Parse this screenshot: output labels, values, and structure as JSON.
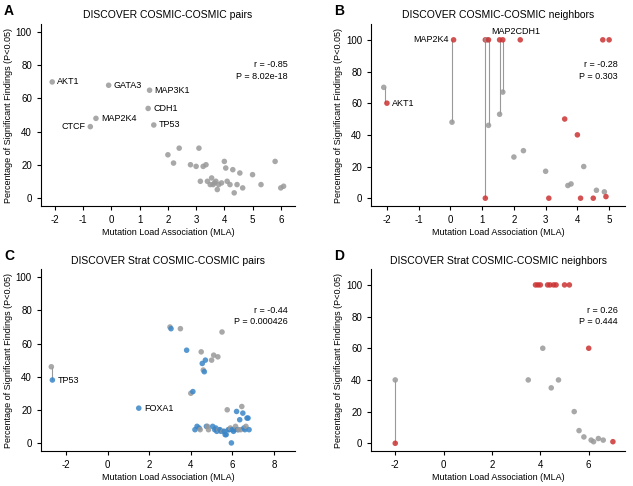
{
  "chart_data": [
    {
      "type": "scatter",
      "panel_label": "A",
      "title": "DISCOVER COSMIC-COSMIC pairs",
      "x_label": "Mutation Load Association (MLA)",
      "y_label": "Percentage of Significant Findings (P<0.05)",
      "annotation": "r = -0.85\nP = 8.02e-18",
      "xlim": [
        -2.5,
        6.5
      ],
      "ylim": [
        -5,
        105
      ],
      "xticks": [
        -2,
        -1,
        0,
        1,
        2,
        3,
        4,
        5,
        6
      ],
      "yticks": [
        0,
        20,
        40,
        60,
        80,
        100
      ],
      "series": [
        {
          "type": "scatter",
          "x": [
            -2.1,
            -0.1,
            1.35,
            -0.55,
            -0.75,
            1.3,
            1.5,
            2.0,
            2.2,
            2.4,
            2.8,
            3.0,
            3.1,
            3.15,
            3.25,
            3.35,
            3.4,
            3.5,
            3.55,
            3.6,
            3.65,
            3.7,
            3.75,
            3.8,
            3.9,
            4.0,
            4.05,
            4.1,
            4.2,
            4.3,
            4.35,
            4.45,
            4.55,
            4.65,
            5.0,
            5.3,
            5.8,
            6.0,
            6.1
          ],
          "values": [
            70,
            68,
            65,
            48,
            43,
            54,
            44,
            26,
            21,
            30,
            20,
            19,
            30,
            10,
            19,
            20,
            10,
            8,
            12,
            8,
            9,
            10,
            5,
            8,
            9,
            22,
            18,
            10,
            8,
            17,
            3,
            8,
            15,
            6,
            14,
            8,
            22,
            6,
            7
          ],
          "colors": [
            "#999999",
            "#999999",
            "#999999",
            "#999999",
            "#999999",
            "#999999",
            "#999999",
            "#999999",
            "#999999",
            "#999999",
            "#999999",
            "#999999",
            "#999999",
            "#999999",
            "#999999",
            "#999999",
            "#999999",
            "#999999",
            "#999999",
            "#999999",
            "#999999",
            "#999999",
            "#999999",
            "#999999",
            "#999999",
            "#999999",
            "#999999",
            "#999999",
            "#999999",
            "#999999",
            "#999999",
            "#999999",
            "#999999",
            "#999999",
            "#999999",
            "#999999",
            "#999999",
            "#999999",
            "#999999"
          ]
        }
      ],
      "point_labels": [
        {
          "x": -2.1,
          "y": 70,
          "label": "AKT1"
        },
        {
          "x": -0.1,
          "y": 68,
          "label": "GATA3"
        },
        {
          "x": 1.35,
          "y": 65,
          "label": "MAP3K1"
        },
        {
          "x": -0.55,
          "y": 48,
          "label": "MAP2K4"
        },
        {
          "x": -0.75,
          "y": 43,
          "label": "CTCF"
        },
        {
          "x": 1.3,
          "y": 54,
          "label": "CDH1"
        },
        {
          "x": 1.5,
          "y": 44,
          "label": "TP53"
        }
      ]
    },
    {
      "type": "scatter",
      "panel_label": "B",
      "title": "DISCOVER COSMIC-COSMIC neighbors",
      "x_label": "Mutation Load Association (MLA)",
      "y_label": "Percentage of Significant Findings (P<0.05)",
      "annotation": "r = -0.28\nP = 0.303",
      "xlim": [
        -2.5,
        5.5
      ],
      "ylim": [
        -5,
        110
      ],
      "xticks": [
        -2,
        -1,
        0,
        1,
        2,
        3,
        4,
        5
      ],
      "yticks": [
        0,
        20,
        40,
        60,
        80,
        100
      ],
      "series": [
        {
          "type": "segment",
          "color": "#999999",
          "x": [
            -2.05,
            0.05,
            1.1,
            1.2,
            1.55,
            1.65
          ],
          "y1": [
            60,
            48,
            0,
            46,
            53,
            67
          ],
          "y2": [
            70,
            100,
            100,
            100,
            100,
            100
          ]
        },
        {
          "type": "scatter",
          "x": [
            -2.1,
            -2.0,
            0.05,
            0.1,
            1.1,
            1.15,
            1.2,
            1.2,
            1.55,
            1.55,
            1.65,
            1.65,
            1.1,
            2.0,
            2.2,
            2.3,
            3.0,
            3.1,
            3.6,
            3.7,
            3.8,
            4.0,
            4.1,
            4.2,
            4.5,
            4.6,
            4.8,
            4.85,
            4.9,
            5.0
          ],
          "values": [
            70,
            60,
            48,
            100,
            100,
            100,
            46,
            100,
            53,
            100,
            67,
            100,
            0,
            26,
            100,
            30,
            17,
            0,
            50,
            8,
            9,
            40,
            0,
            20,
            0,
            5,
            100,
            4,
            1,
            100
          ],
          "colors": [
            "#999999",
            "#cc3333",
            "#999999",
            "#cc3333",
            "#cc3333",
            "#999999",
            "#999999",
            "#cc3333",
            "#999999",
            "#cc3333",
            "#999999",
            "#cc3333",
            "#cc3333",
            "#999999",
            "#cc3333",
            "#999999",
            "#999999",
            "#cc3333",
            "#cc3333",
            "#999999",
            "#999999",
            "#cc3333",
            "#cc3333",
            "#999999",
            "#cc3333",
            "#999999",
            "#cc3333",
            "#999999",
            "#cc3333",
            "#cc3333"
          ]
        }
      ],
      "point_labels": [
        {
          "x": -2.0,
          "y": 60,
          "label": "AKT1"
        },
        {
          "x": 0.1,
          "y": 100,
          "label": "MAP2K4"
        },
        {
          "x": 1.15,
          "y": 100,
          "label": "MAP2CDH1"
        }
      ]
    },
    {
      "type": "scatter",
      "panel_label": "C",
      "title": "DISCOVER Strat COSMIC-COSMIC pairs",
      "x_label": "Mutation Load Association (MLA)",
      "y_label": "Percentage of Significant Findings (P<0.05)",
      "annotation": "r = -0.44\nP = 0.000426",
      "xlim": [
        -3.2,
        9.0
      ],
      "ylim": [
        -5,
        105
      ],
      "xticks": [
        -2,
        0,
        2,
        4,
        6,
        8
      ],
      "yticks": [
        0,
        20,
        40,
        60,
        80,
        100
      ],
      "series": [
        {
          "type": "segment",
          "color": "#999999",
          "x": [
            -2.65
          ],
          "y1": [
            38
          ],
          "y2": [
            46
          ]
        },
        {
          "type": "scatter",
          "x": [
            -2.7,
            -2.65,
            1.5,
            3.0,
            3.05,
            3.5,
            3.8,
            4.0,
            4.1,
            4.2,
            4.3,
            4.4,
            4.45,
            4.5,
            4.55,
            4.6,
            4.65,
            4.7,
            4.75,
            4.8,
            4.85,
            5.0,
            5.05,
            5.1,
            5.15,
            5.2,
            5.25,
            5.3,
            5.35,
            5.4,
            5.45,
            5.5,
            5.55,
            5.6,
            5.65,
            5.7,
            5.75,
            5.8,
            5.85,
            5.9,
            5.95,
            6.0,
            6.05,
            6.1,
            6.15,
            6.2,
            6.25,
            6.3,
            6.35,
            6.4,
            6.45,
            6.5,
            6.55,
            6.6,
            6.65,
            6.7,
            6.75,
            6.8
          ],
          "values": [
            46,
            38,
            21,
            70,
            69,
            69,
            56,
            30,
            31,
            8,
            10,
            9,
            8,
            55,
            48,
            44,
            43,
            50,
            10,
            10,
            8,
            50,
            10,
            53,
            8,
            9,
            7,
            52,
            8,
            8,
            7,
            67,
            7,
            7,
            5,
            5,
            20,
            8,
            8,
            9,
            0,
            8,
            7,
            8,
            10,
            19,
            8,
            8,
            14,
            8,
            22,
            18,
            9,
            8,
            10,
            15,
            15,
            8
          ],
          "colors": [
            "#999999",
            "#3a86c8",
            "#3a86c8",
            "#999999",
            "#3a86c8",
            "#999999",
            "#3a86c8",
            "#999999",
            "#3a86c8",
            "#3a86c8",
            "#3a86c8",
            "#3a86c8",
            "#999999",
            "#999999",
            "#3a86c8",
            "#999999",
            "#3a86c8",
            "#3a86c8",
            "#3a86c8",
            "#999999",
            "#999999",
            "#999999",
            "#3a86c8",
            "#999999",
            "#3a86c8",
            "#3a86c8",
            "#3a86c8",
            "#999999",
            "#999999",
            "#3a86c8",
            "#3a86c8",
            "#999999",
            "#999999",
            "#3a86c8",
            "#3a86c8",
            "#3a86c8",
            "#999999",
            "#3a86c8",
            "#3a86c8",
            "#999999",
            "#3a86c8",
            "#3a86c8",
            "#3a86c8",
            "#3a86c8",
            "#999999",
            "#3a86c8",
            "#3a86c8",
            "#999999",
            "#3a86c8",
            "#999999",
            "#999999",
            "#3a86c8",
            "#3a86c8",
            "#3a86c8",
            "#999999",
            "#3a86c8",
            "#3a86c8",
            "#3a86c8"
          ]
        }
      ],
      "point_labels": [
        {
          "x": -2.65,
          "y": 38,
          "label": "TP53"
        },
        {
          "x": 1.5,
          "y": 21,
          "label": "FOXA1"
        }
      ]
    },
    {
      "type": "scatter",
      "panel_label": "D",
      "title": "DISCOVER Strat COSMIC-COSMIC neighbors",
      "x_label": "Mutation Load Association (MLA)",
      "y_label": "Percentage of Significant Findings (P<0.05)",
      "annotation": "r = 0.26\nP = 0.444",
      "xlim": [
        -3.0,
        7.5
      ],
      "ylim": [
        -5,
        110
      ],
      "xticks": [
        -2,
        0,
        2,
        4,
        6
      ],
      "yticks": [
        0,
        20,
        40,
        60,
        80,
        100
      ],
      "series": [
        {
          "type": "segment",
          "color": "#999999",
          "x": [
            -2.0
          ],
          "y1": [
            0
          ],
          "y2": [
            40
          ]
        },
        {
          "type": "scatter",
          "x": [
            -2.0,
            -2.0,
            3.5,
            3.8,
            3.9,
            4.0,
            4.1,
            4.3,
            4.4,
            4.45,
            4.55,
            4.65,
            4.75,
            5.0,
            5.2,
            5.4,
            5.6,
            5.8,
            6.0,
            6.1,
            6.2,
            6.4,
            6.6,
            7.0
          ],
          "values": [
            40,
            0,
            40,
            100,
            100,
            100,
            60,
            100,
            100,
            35,
            100,
            100,
            40,
            100,
            100,
            20,
            8,
            4,
            60,
            2,
            1,
            3,
            2,
            1
          ],
          "colors": [
            "#999999",
            "#cc3333",
            "#999999",
            "#cc3333",
            "#cc3333",
            "#cc3333",
            "#999999",
            "#cc3333",
            "#cc3333",
            "#999999",
            "#cc3333",
            "#cc3333",
            "#999999",
            "#cc3333",
            "#cc3333",
            "#999999",
            "#999999",
            "#999999",
            "#cc3333",
            "#999999",
            "#999999",
            "#999999",
            "#999999",
            "#cc3333"
          ]
        }
      ]
    }
  ]
}
